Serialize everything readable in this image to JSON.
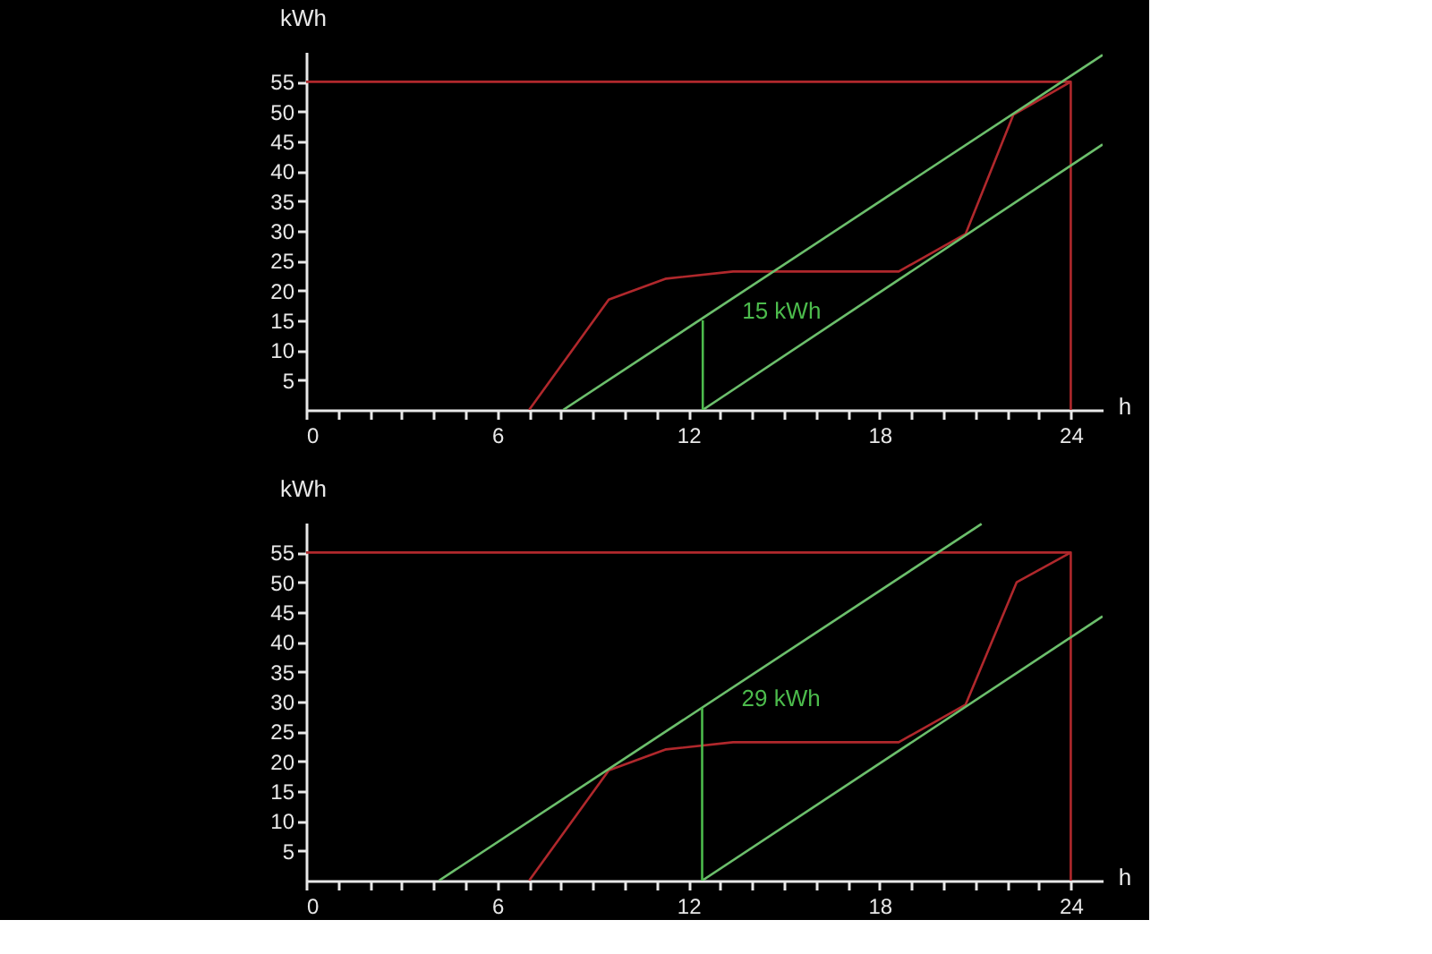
{
  "chart_data": [
    {
      "type": "line",
      "xlabel": "h",
      "ylabel": "kWh",
      "xlim": [
        0,
        25
      ],
      "ylim": [
        0,
        60
      ],
      "xticks": [
        0,
        {
          "value": 1,
          "label": null
        },
        {
          "value": 2,
          "label": null
        },
        {
          "value": 3,
          "label": null
        },
        {
          "value": 4,
          "label": null
        },
        {
          "value": 5,
          "label": null
        },
        6,
        {
          "value": 7,
          "label": null
        },
        {
          "value": 8,
          "label": null
        },
        {
          "value": 9,
          "label": null
        },
        {
          "value": 10,
          "label": null
        },
        {
          "value": 11,
          "label": null
        },
        12,
        {
          "value": 13,
          "label": null
        },
        {
          "value": 14,
          "label": null
        },
        {
          "value": 15,
          "label": null
        },
        {
          "value": 16,
          "label": null
        },
        {
          "value": 17,
          "label": null
        },
        18,
        {
          "value": 19,
          "label": null
        },
        {
          "value": 20,
          "label": null
        },
        {
          "value": 21,
          "label": null
        },
        {
          "value": 22,
          "label": null
        },
        {
          "value": 23,
          "label": null
        },
        24
      ],
      "yticks": [
        5,
        10,
        15,
        20,
        25,
        30,
        35,
        40,
        45,
        50,
        55
      ],
      "grid": false,
      "series": [
        {
          "color": "#b0282c",
          "x": [
            7.0,
            9.5,
            11.3,
            13.4,
            18.6,
            20.7,
            22.2,
            24.0
          ],
          "values": [
            0,
            18.5,
            22,
            23.2,
            23.2,
            29.5,
            49.5,
            55
          ]
        },
        {
          "color": "#b0282c",
          "x": [
            0,
            24,
            24
          ],
          "values": [
            55,
            55,
            0
          ]
        },
        {
          "color": "#6cbf6c",
          "x": [
            8.07,
            25.0
          ],
          "values": [
            0,
            59.5
          ]
        },
        {
          "color": "#6cbf6c",
          "x": [
            12.45,
            25.0
          ],
          "values": [
            0,
            44.5
          ]
        },
        {
          "color": "#4cbb4c",
          "x": [
            12.45,
            12.45
          ],
          "values": [
            0,
            15
          ]
        }
      ],
      "annotations": [
        {
          "text": "15 kWh",
          "x": 12.45,
          "y": 15
        }
      ]
    },
    {
      "type": "line",
      "xlabel": "h",
      "ylabel": "kWh",
      "xlim": [
        0,
        25
      ],
      "ylim": [
        0,
        60
      ],
      "xticks": [
        0,
        {
          "value": 1,
          "label": null
        },
        {
          "value": 2,
          "label": null
        },
        {
          "value": 3,
          "label": null
        },
        {
          "value": 4,
          "label": null
        },
        {
          "value": 5,
          "label": null
        },
        6,
        {
          "value": 7,
          "label": null
        },
        {
          "value": 8,
          "label": null
        },
        {
          "value": 9,
          "label": null
        },
        {
          "value": 10,
          "label": null
        },
        {
          "value": 11,
          "label": null
        },
        12,
        {
          "value": 13,
          "label": null
        },
        {
          "value": 14,
          "label": null
        },
        {
          "value": 15,
          "label": null
        },
        {
          "value": 16,
          "label": null
        },
        {
          "value": 17,
          "label": null
        },
        18,
        {
          "value": 19,
          "label": null
        },
        {
          "value": 20,
          "label": null
        },
        {
          "value": 21,
          "label": null
        },
        {
          "value": 22,
          "label": null
        },
        {
          "value": 23,
          "label": null
        },
        24
      ],
      "yticks": [
        5,
        10,
        15,
        20,
        25,
        30,
        35,
        40,
        45,
        50,
        55
      ],
      "grid": false,
      "series": [
        {
          "color": "#b0282c",
          "x": [
            7.0,
            9.5,
            11.3,
            13.4,
            18.6,
            20.7,
            22.3,
            24.0
          ],
          "values": [
            0,
            18.5,
            22,
            23.2,
            23.2,
            29.5,
            50,
            55
          ]
        },
        {
          "color": "#b0282c",
          "x": [
            0,
            24,
            24
          ],
          "values": [
            55,
            55,
            0
          ]
        },
        {
          "color": "#6cbf6c",
          "x": [
            4.17,
            21.2
          ],
          "values": [
            0,
            59.8
          ]
        },
        {
          "color": "#6cbf6c",
          "x": [
            12.43,
            25.0
          ],
          "values": [
            0,
            44.3
          ]
        },
        {
          "color": "#4cbb4c",
          "x": [
            12.43,
            12.43
          ],
          "values": [
            0,
            29
          ]
        }
      ],
      "annotations": [
        {
          "text": "29 kWh",
          "x": 12.43,
          "y": 29
        }
      ]
    }
  ]
}
